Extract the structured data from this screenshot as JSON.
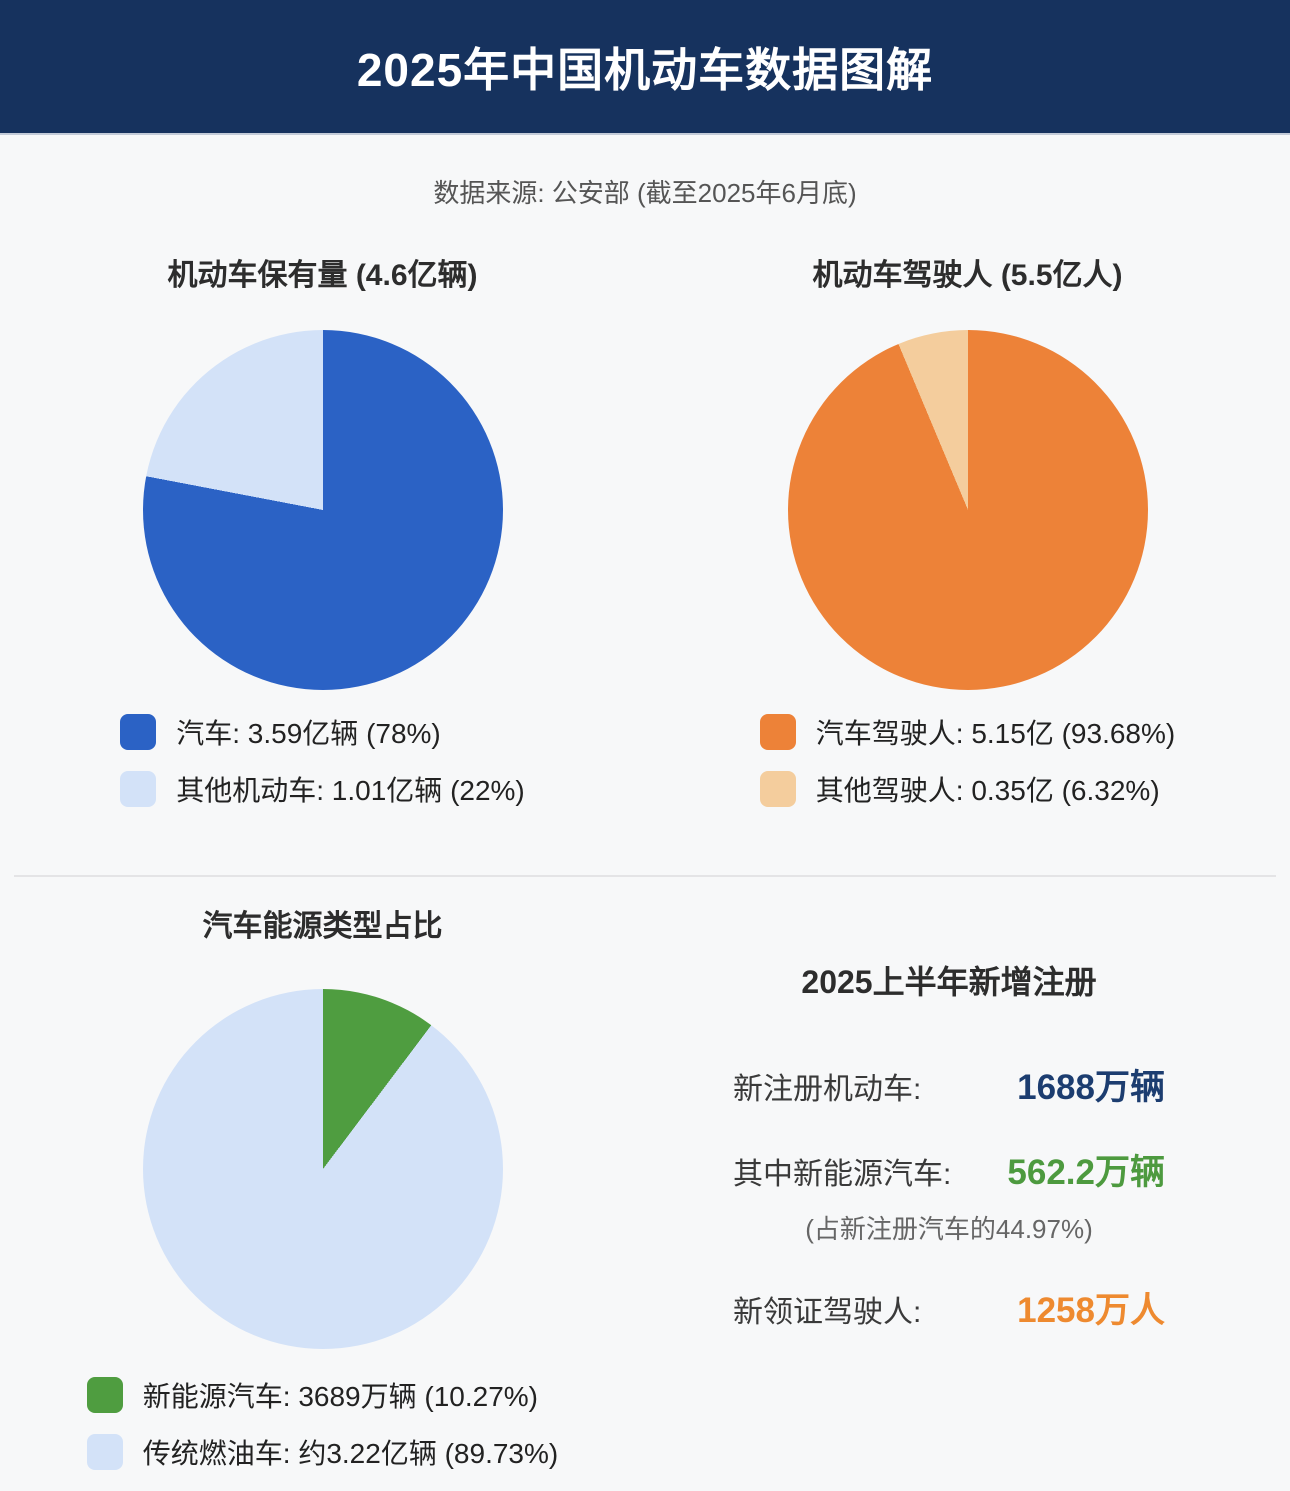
{
  "page": {
    "header": {
      "title": "2025年中国机动车数据图解",
      "bg_color": "#16325e",
      "text_color": "#ffffff"
    },
    "source_note": "数据来源: 公安部 (截至2025年6月底)",
    "background_color": "#f7f8f9"
  },
  "chart_data": [
    {
      "id": "vehicle-ownership",
      "type": "pie",
      "title": "机动车保有量 (4.6亿辆)",
      "total_text": "4.6亿辆",
      "legend_position": "bottom",
      "slices": [
        {
          "label": "汽车",
          "value_text": "3.59亿辆",
          "percent": 78,
          "color": "#2b62c5",
          "legend": "汽车: 3.59亿辆 (78%)"
        },
        {
          "label": "其他机动车",
          "value_text": "1.01亿辆",
          "percent": 22,
          "color": "#d3e2f8",
          "legend": "其他机动车: 1.01亿辆 (22%)"
        }
      ]
    },
    {
      "id": "drivers",
      "type": "pie",
      "title": "机动车驾驶人 (5.5亿人)",
      "total_text": "5.5亿人",
      "legend_position": "bottom",
      "slices": [
        {
          "label": "汽车驾驶人",
          "value_text": "5.15亿",
          "percent": 93.68,
          "color": "#ed8238",
          "legend": "汽车驾驶人: 5.15亿 (93.68%)"
        },
        {
          "label": "其他驾驶人",
          "value_text": "0.35亿",
          "percent": 6.32,
          "color": "#f4cd9d",
          "legend": "其他驾驶人: 0.35亿 (6.32%)"
        }
      ]
    },
    {
      "id": "energy-type",
      "type": "pie",
      "title": "汽车能源类型占比",
      "legend_position": "bottom",
      "slices": [
        {
          "label": "新能源汽车",
          "value_text": "3689万辆",
          "percent": 10.27,
          "color": "#4f9d40",
          "legend": "新能源汽车: 3689万辆 (10.27%)"
        },
        {
          "label": "传统燃油车",
          "value_text": "约3.22亿辆",
          "percent": 89.73,
          "color": "#d3e2f8",
          "legend": "传统燃油车: 约3.22亿辆 (89.73%)"
        }
      ]
    }
  ],
  "registration_panel": {
    "title": "2025上半年新增注册",
    "rows": [
      {
        "label": "新注册机动车:",
        "value": "1688万辆",
        "value_color": "#1c3d70"
      },
      {
        "label": "其中新能源汽车:",
        "value": "562.2万辆",
        "value_color": "#4d9a3f"
      },
      {
        "label": "新领证驾驶人:",
        "value": "1258万人",
        "value_color": "#ee8a30"
      }
    ],
    "note": "(占新注册汽车的44.97%)"
  }
}
